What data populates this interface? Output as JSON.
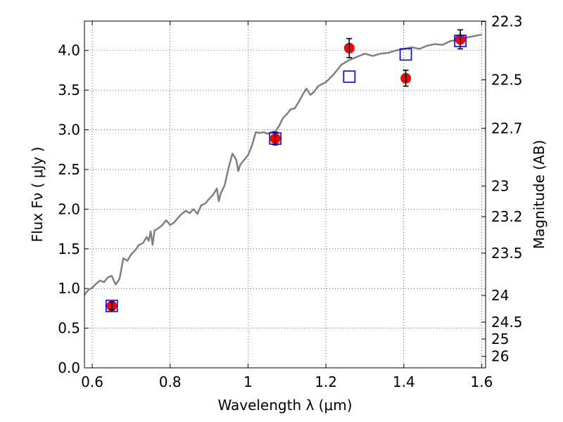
{
  "chart_data": {
    "type": "scatter",
    "x_axis": {
      "label": "Wavelength  λ (μm)",
      "range": [
        0.58,
        1.61
      ],
      "ticks": [
        {
          "value": 0.6,
          "label": "0.6"
        },
        {
          "value": 0.8,
          "label": "0.8"
        },
        {
          "value": 1.0,
          "label": "1"
        },
        {
          "value": 1.2,
          "label": "1.2"
        },
        {
          "value": 1.4,
          "label": "1.4"
        },
        {
          "value": 1.6,
          "label": "1.6"
        }
      ]
    },
    "y_axis": {
      "label": "Flux  Fν  ( μJy )",
      "range": [
        0.0,
        4.37
      ],
      "ticks": [
        {
          "value": 0.0,
          "label": "0.0"
        },
        {
          "value": 0.5,
          "label": "0.5"
        },
        {
          "value": 1.0,
          "label": "1.0"
        },
        {
          "value": 1.5,
          "label": "1.5"
        },
        {
          "value": 2.0,
          "label": "2.0"
        },
        {
          "value": 2.5,
          "label": "2.5"
        },
        {
          "value": 3.0,
          "label": "3.0"
        },
        {
          "value": 3.5,
          "label": "3.5"
        },
        {
          "value": 4.0,
          "label": "4.0"
        }
      ]
    },
    "y2_axis": {
      "label": "Magnitude (AB)",
      "ticks": [
        {
          "value": 22.3,
          "label": "22.3"
        },
        {
          "value": 22.5,
          "label": "22.5"
        },
        {
          "value": 22.7,
          "label": "22.7"
        },
        {
          "value": 23,
          "label": "23"
        },
        {
          "value": 23.2,
          "label": "23.2"
        },
        {
          "value": 23.5,
          "label": "23.5"
        },
        {
          "value": 24,
          "label": "24"
        },
        {
          "value": 24.5,
          "label": "24.5"
        },
        {
          "value": 25,
          "label": "25"
        },
        {
          "value": 26,
          "label": "26"
        }
      ]
    },
    "grid": true,
    "series": [
      {
        "kind": "line",
        "color": "#808080",
        "points": [
          [
            0.58,
            0.92
          ],
          [
            0.59,
            0.98
          ],
          [
            0.6,
            1.01
          ],
          [
            0.61,
            1.06
          ],
          [
            0.62,
            1.1
          ],
          [
            0.63,
            1.08
          ],
          [
            0.64,
            1.14
          ],
          [
            0.65,
            1.16
          ],
          [
            0.66,
            1.05
          ],
          [
            0.67,
            1.12
          ],
          [
            0.68,
            1.38
          ],
          [
            0.69,
            1.35
          ],
          [
            0.7,
            1.43
          ],
          [
            0.71,
            1.48
          ],
          [
            0.72,
            1.55
          ],
          [
            0.73,
            1.57
          ],
          [
            0.74,
            1.65
          ],
          [
            0.745,
            1.6
          ],
          [
            0.75,
            1.72
          ],
          [
            0.755,
            1.55
          ],
          [
            0.76,
            1.73
          ],
          [
            0.77,
            1.76
          ],
          [
            0.78,
            1.8
          ],
          [
            0.79,
            1.86
          ],
          [
            0.8,
            1.8
          ],
          [
            0.81,
            1.83
          ],
          [
            0.82,
            1.89
          ],
          [
            0.83,
            1.94
          ],
          [
            0.84,
            1.98
          ],
          [
            0.85,
            1.95
          ],
          [
            0.86,
            2.0
          ],
          [
            0.87,
            1.94
          ],
          [
            0.88,
            2.05
          ],
          [
            0.89,
            2.07
          ],
          [
            0.9,
            2.13
          ],
          [
            0.91,
            2.18
          ],
          [
            0.92,
            2.26
          ],
          [
            0.925,
            2.1
          ],
          [
            0.93,
            2.2
          ],
          [
            0.94,
            2.3
          ],
          [
            0.95,
            2.52
          ],
          [
            0.96,
            2.7
          ],
          [
            0.97,
            2.62
          ],
          [
            0.975,
            2.48
          ],
          [
            0.98,
            2.56
          ],
          [
            0.99,
            2.62
          ],
          [
            1.0,
            2.68
          ],
          [
            1.01,
            2.8
          ],
          [
            1.02,
            2.97
          ],
          [
            1.03,
            2.96
          ],
          [
            1.04,
            2.97
          ],
          [
            1.05,
            2.95
          ],
          [
            1.06,
            2.97
          ],
          [
            1.07,
            2.98
          ],
          [
            1.08,
            3.05
          ],
          [
            1.09,
            3.15
          ],
          [
            1.1,
            3.2
          ],
          [
            1.11,
            3.26
          ],
          [
            1.12,
            3.27
          ],
          [
            1.13,
            3.35
          ],
          [
            1.14,
            3.44
          ],
          [
            1.15,
            3.52
          ],
          [
            1.16,
            3.44
          ],
          [
            1.17,
            3.48
          ],
          [
            1.18,
            3.55
          ],
          [
            1.2,
            3.6
          ],
          [
            1.22,
            3.7
          ],
          [
            1.24,
            3.82
          ],
          [
            1.26,
            3.88
          ],
          [
            1.28,
            3.92
          ],
          [
            1.3,
            3.96
          ],
          [
            1.32,
            3.93
          ],
          [
            1.34,
            3.96
          ],
          [
            1.36,
            3.97
          ],
          [
            1.38,
            4.0
          ],
          [
            1.4,
            4.02
          ],
          [
            1.42,
            4.04
          ],
          [
            1.44,
            4.02
          ],
          [
            1.46,
            4.06
          ],
          [
            1.48,
            4.08
          ],
          [
            1.5,
            4.07
          ],
          [
            1.52,
            4.12
          ],
          [
            1.54,
            4.13
          ],
          [
            1.56,
            4.16
          ],
          [
            1.58,
            4.18
          ],
          [
            1.6,
            4.2
          ]
        ]
      },
      {
        "kind": "circle",
        "color": "#ff0000",
        "points": [
          {
            "x": 0.65,
            "y": 0.78,
            "err": 0.05
          },
          {
            "x": 1.07,
            "y": 2.89,
            "err": 0.08
          },
          {
            "x": 1.26,
            "y": 4.03,
            "err": 0.12
          },
          {
            "x": 1.405,
            "y": 3.65,
            "err": 0.1
          },
          {
            "x": 1.545,
            "y": 4.14,
            "err": 0.12
          }
        ]
      },
      {
        "kind": "square",
        "color": "#0000ff",
        "points": [
          {
            "x": 0.65,
            "y": 0.78
          },
          {
            "x": 1.07,
            "y": 2.89
          },
          {
            "x": 1.26,
            "y": 3.67
          },
          {
            "x": 1.405,
            "y": 3.95
          },
          {
            "x": 1.545,
            "y": 4.12
          }
        ]
      }
    ]
  }
}
